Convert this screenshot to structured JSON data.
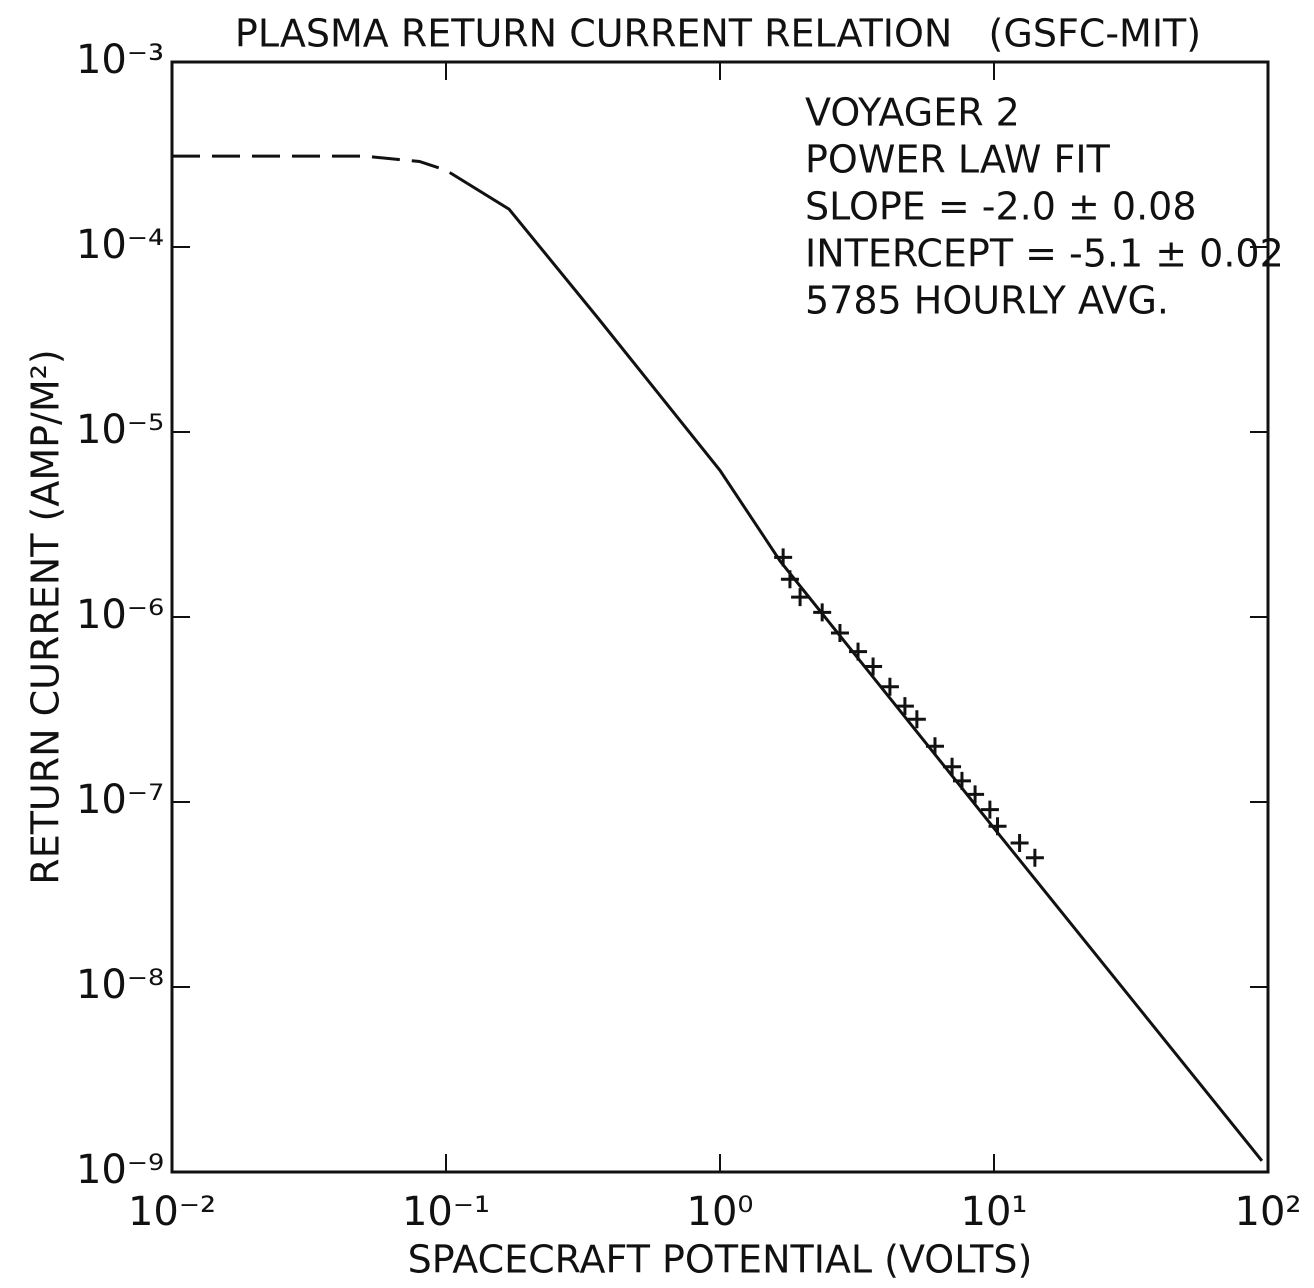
{
  "chart_data": {
    "type": "line",
    "title": "PLASMA RETURN CURRENT RELATION   (GSFC-MIT)",
    "xlabel": "SPACECRAFT POTENTIAL (VOLTS)",
    "ylabel": "RETURN CURRENT (AMP/M²)",
    "xscale": "log",
    "yscale": "log",
    "xlim": [
      0.01,
      100
    ],
    "ylim": [
      1e-09,
      0.001
    ],
    "xticks": [
      {
        "value": 0.01,
        "label": "10⁻²"
      },
      {
        "value": 0.1,
        "label": "10⁻¹"
      },
      {
        "value": 1,
        "label": "10⁰"
      },
      {
        "value": 10,
        "label": "10¹"
      },
      {
        "value": 100,
        "label": "10²"
      }
    ],
    "yticks": [
      {
        "value": 1e-09,
        "label": "10⁻⁹"
      },
      {
        "value": 1e-08,
        "label": "10⁻⁸"
      },
      {
        "value": 1e-07,
        "label": "10⁻⁷"
      },
      {
        "value": 1e-06,
        "label": "10⁻⁶"
      },
      {
        "value": 1e-05,
        "label": "10⁻⁵"
      },
      {
        "value": 0.0001,
        "label": "10⁻⁴"
      },
      {
        "value": 0.001,
        "label": "10⁻³"
      }
    ],
    "annotations": [
      "VOYAGER 2",
      "POWER LAW FIT",
      "SLOPE = -2.0 ± 0.08",
      "INTERCEPT = -5.1 ± 0.02",
      "5785 HOURLY AVG."
    ],
    "series": [
      {
        "style": "dashed",
        "color": "#111",
        "x": [
          0.01,
          0.05,
          0.08,
          0.1,
          0.12
        ],
        "values": [
          0.00031,
          0.00031,
          0.00029,
          0.00026,
          0.00022
        ]
      },
      {
        "style": "solid",
        "color": "#111",
        "x": [
          0.12,
          0.17,
          0.36,
          1,
          1.66,
          10.5,
          95
        ],
        "values": [
          0.00022,
          0.00016,
          4.1e-05,
          6.2e-06,
          2e-06,
          6.6e-08,
          1.15e-09
        ]
      },
      {
        "style": "markers",
        "color": "#111",
        "x": [
          1.7,
          1.8,
          1.96,
          2.36,
          2.74,
          3.19,
          3.62,
          4.17,
          4.73,
          5.23,
          6.09,
          7.03,
          7.64,
          8.53,
          9.66,
          10.3,
          12.4,
          14.1
        ],
        "values": [
          2.1e-06,
          1.6e-06,
          1.28e-06,
          1.06e-06,
          8.2e-07,
          6.5e-07,
          5.4e-07,
          4.2e-07,
          3.3e-07,
          2.8e-07,
          2e-07,
          1.55e-07,
          1.3e-07,
          1.1e-07,
          9.1e-08,
          7.4e-08,
          6e-08,
          5e-08
        ]
      }
    ]
  }
}
